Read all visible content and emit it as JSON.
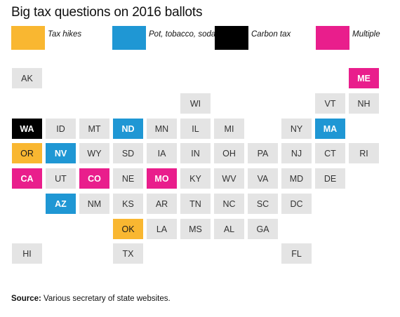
{
  "title": "Big tax questions on 2016 ballots",
  "colors": {
    "tax_hikes": "#f9b731",
    "pot_tobacco_soda": "#1f97d4",
    "carbon_tax": "#000000",
    "multiple": "#e91e8c",
    "none": "#e4e4e4"
  },
  "legend": [
    {
      "key": "tax_hikes",
      "label": "Tax hikes"
    },
    {
      "key": "pot_tobacco_soda",
      "label": "Pot, tobacco, soda taxes"
    },
    {
      "key": "carbon_tax",
      "label": "Carbon tax"
    },
    {
      "key": "multiple",
      "label": "Multiple"
    }
  ],
  "states": [
    {
      "abbr": "AK",
      "category": "none"
    },
    {
      "abbr": "ME",
      "category": "multiple"
    },
    {
      "abbr": "WI",
      "category": "none"
    },
    {
      "abbr": "VT",
      "category": "none"
    },
    {
      "abbr": "NH",
      "category": "none"
    },
    {
      "abbr": "WA",
      "category": "carbon_tax"
    },
    {
      "abbr": "ID",
      "category": "none"
    },
    {
      "abbr": "MT",
      "category": "none"
    },
    {
      "abbr": "ND",
      "category": "pot_tobacco_soda"
    },
    {
      "abbr": "MN",
      "category": "none"
    },
    {
      "abbr": "IL",
      "category": "none"
    },
    {
      "abbr": "MI",
      "category": "none"
    },
    {
      "abbr": "NY",
      "category": "none"
    },
    {
      "abbr": "MA",
      "category": "pot_tobacco_soda"
    },
    {
      "abbr": "OR",
      "category": "tax_hikes"
    },
    {
      "abbr": "NV",
      "category": "pot_tobacco_soda"
    },
    {
      "abbr": "WY",
      "category": "none"
    },
    {
      "abbr": "SD",
      "category": "none"
    },
    {
      "abbr": "IA",
      "category": "none"
    },
    {
      "abbr": "IN",
      "category": "none"
    },
    {
      "abbr": "OH",
      "category": "none"
    },
    {
      "abbr": "PA",
      "category": "none"
    },
    {
      "abbr": "NJ",
      "category": "none"
    },
    {
      "abbr": "CT",
      "category": "none"
    },
    {
      "abbr": "RI",
      "category": "none"
    },
    {
      "abbr": "CA",
      "category": "multiple"
    },
    {
      "abbr": "UT",
      "category": "none"
    },
    {
      "abbr": "CO",
      "category": "multiple"
    },
    {
      "abbr": "NE",
      "category": "none"
    },
    {
      "abbr": "MO",
      "category": "multiple"
    },
    {
      "abbr": "KY",
      "category": "none"
    },
    {
      "abbr": "WV",
      "category": "none"
    },
    {
      "abbr": "VA",
      "category": "none"
    },
    {
      "abbr": "MD",
      "category": "none"
    },
    {
      "abbr": "DE",
      "category": "none"
    },
    {
      "abbr": "AZ",
      "category": "pot_tobacco_soda"
    },
    {
      "abbr": "NM",
      "category": "none"
    },
    {
      "abbr": "KS",
      "category": "none"
    },
    {
      "abbr": "AR",
      "category": "none"
    },
    {
      "abbr": "TN",
      "category": "none"
    },
    {
      "abbr": "NC",
      "category": "none"
    },
    {
      "abbr": "SC",
      "category": "none"
    },
    {
      "abbr": "DC",
      "category": "none"
    },
    {
      "abbr": "OK",
      "category": "tax_hikes"
    },
    {
      "abbr": "LA",
      "category": "none"
    },
    {
      "abbr": "MS",
      "category": "none"
    },
    {
      "abbr": "AL",
      "category": "none"
    },
    {
      "abbr": "GA",
      "category": "none"
    },
    {
      "abbr": "HI",
      "category": "none"
    },
    {
      "abbr": "TX",
      "category": "none"
    },
    {
      "abbr": "FL",
      "category": "none"
    }
  ],
  "source": {
    "label": "Source:",
    "text": " Various secretary of state websites."
  }
}
